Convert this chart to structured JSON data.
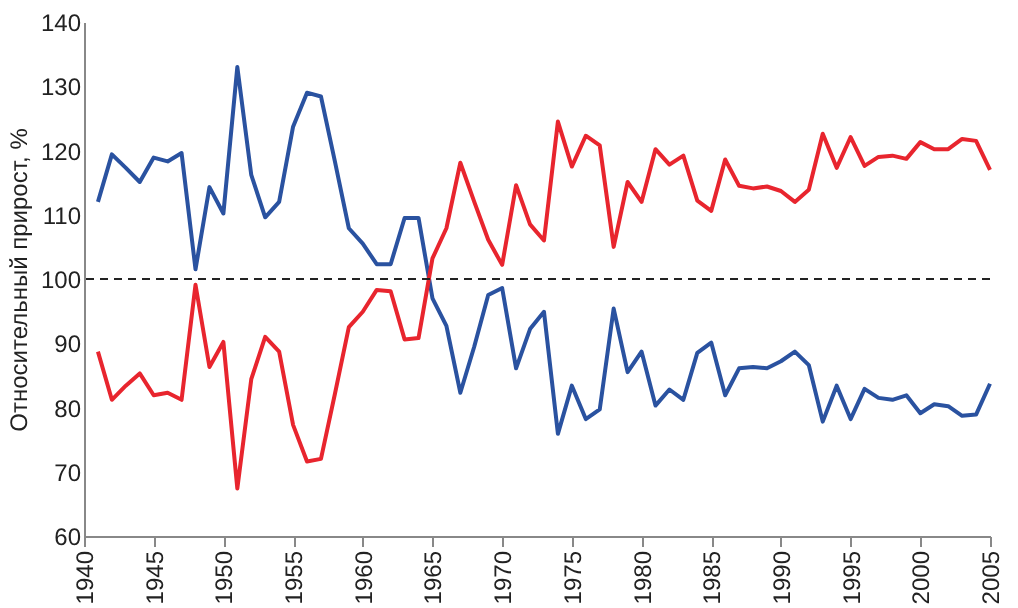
{
  "chart_data": {
    "type": "line",
    "ylabel": "Относительный прирост, %",
    "x": [
      1941,
      1942,
      1943,
      1944,
      1945,
      1946,
      1947,
      1948,
      1949,
      1950,
      1951,
      1952,
      1953,
      1954,
      1955,
      1956,
      1957,
      1958,
      1959,
      1960,
      1961,
      1962,
      1963,
      1964,
      1965,
      1966,
      1967,
      1968,
      1969,
      1970,
      1971,
      1972,
      1973,
      1974,
      1975,
      1976,
      1977,
      1978,
      1979,
      1980,
      1981,
      1982,
      1983,
      1984,
      1985,
      1986,
      1987,
      1988,
      1989,
      1990,
      1991,
      1992,
      1993,
      1994,
      1995,
      1996,
      1997,
      1998,
      1999,
      2000,
      2001,
      2002,
      2003,
      2004,
      2005
    ],
    "series": [
      {
        "color": "#2a52a0",
        "values": [
          112,
          119.4,
          117.3,
          115.1,
          118.9,
          118.3,
          119.6,
          101.5,
          114.3,
          110.2,
          133,
          116.2,
          109.6,
          112,
          123.7,
          129,
          128.4,
          118.3,
          107.9,
          105.5,
          102.3,
          102.3,
          109.5,
          109.5,
          97,
          92.7,
          82.3,
          89.5,
          97.5,
          98.6,
          86.1,
          92.2,
          94.9,
          75.9,
          83.4,
          78.2,
          79.7,
          95.4,
          85.5,
          88.7,
          80.3,
          82.8,
          81.2,
          88.5,
          90.1,
          81.9,
          86.1,
          86.3,
          86.1,
          87.2,
          88.7,
          86.6,
          77.8,
          83.4,
          78.2,
          82.9,
          81.5,
          81.2,
          81.9,
          79.1,
          80.5,
          80.2,
          78.7,
          78.9,
          83.7
        ]
      },
      {
        "color": "#e8252e",
        "values": [
          88.7,
          81.2,
          83.4,
          85.3,
          81.9,
          82.3,
          81.2,
          99.1,
          86.3,
          90.2,
          67.4,
          84.4,
          91,
          88.7,
          77.3,
          71.6,
          72,
          82.1,
          92.5,
          94.9,
          98.3,
          98.1,
          90.6,
          90.8,
          103.2,
          107.9,
          118.1,
          112,
          106.1,
          102.2,
          114.6,
          108.5,
          106,
          124.5,
          117.5,
          122.3,
          120.8,
          105,
          115.1,
          112,
          120.2,
          117.8,
          119.2,
          112.2,
          110.6,
          118.6,
          114.5,
          114.1,
          114.4,
          113.7,
          112,
          113.9,
          122.6,
          117.3,
          122.1,
          117.6,
          119,
          119.2,
          118.7,
          121.3,
          120.2,
          120.2,
          121.8,
          121.5,
          117
        ]
      }
    ],
    "xlim": [
      1940,
      2005
    ],
    "xticks": [
      1940,
      1945,
      1950,
      1955,
      1960,
      1965,
      1970,
      1975,
      1980,
      1985,
      1990,
      1995,
      2000,
      2005
    ],
    "ylim": [
      60,
      140
    ],
    "yticks": [
      60,
      70,
      80,
      90,
      100,
      110,
      120,
      130,
      140
    ],
    "ref_lines": [
      {
        "axis": "y",
        "value": 100,
        "color": "#222222",
        "line_style": "dashed"
      }
    ],
    "grid": false
  }
}
